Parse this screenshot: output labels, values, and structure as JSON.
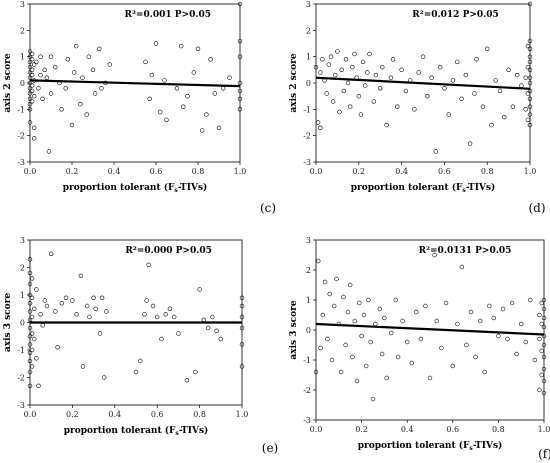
{
  "chart_data": [
    {
      "type": "scatter",
      "panel_label": "(c)",
      "annotation": "R²=0.001 P>0.05",
      "xlabel": "proportion tolerant (F_s-TIVs)",
      "ylabel": "axis 2 score",
      "xlim": [
        0,
        1
      ],
      "ylim": [
        -3,
        3
      ],
      "xticks": [
        "0.0",
        "0.2",
        "0.4",
        "0.6",
        "0.8",
        "1.0"
      ],
      "yticks": [
        "-3",
        "-2",
        "-1",
        "0",
        "1",
        "2",
        "3"
      ],
      "trend": {
        "x": [
          0,
          1
        ],
        "y": [
          0.1,
          -0.12
        ]
      },
      "points": [
        [
          0.0,
          1.2
        ],
        [
          0.0,
          1.0
        ],
        [
          0.0,
          0.8
        ],
        [
          0.0,
          0.6
        ],
        [
          0.0,
          0.4
        ],
        [
          0.0,
          0.2
        ],
        [
          0.0,
          0.0
        ],
        [
          0.0,
          -0.2
        ],
        [
          0.0,
          -0.4
        ],
        [
          0.0,
          -0.6
        ],
        [
          0.0,
          -0.8
        ],
        [
          0.0,
          -1.0
        ],
        [
          0.0,
          -1.5
        ],
        [
          0.01,
          1.1
        ],
        [
          0.01,
          0.9
        ],
        [
          0.01,
          0.5
        ],
        [
          0.01,
          0.3
        ],
        [
          0.01,
          -0.1
        ],
        [
          0.01,
          -0.3
        ],
        [
          0.01,
          -0.7
        ],
        [
          0.02,
          0.7
        ],
        [
          0.02,
          0.1
        ],
        [
          0.02,
          -0.5
        ],
        [
          0.02,
          -1.7
        ],
        [
          0.02,
          -2.1
        ],
        [
          0.03,
          0.8
        ],
        [
          0.04,
          -0.2
        ],
        [
          0.05,
          1.0
        ],
        [
          0.05,
          0.3
        ],
        [
          0.06,
          -0.6
        ],
        [
          0.07,
          0.5
        ],
        [
          0.08,
          0.2
        ],
        [
          0.09,
          -2.6
        ],
        [
          0.1,
          1.0
        ],
        [
          0.1,
          -0.4
        ],
        [
          0.12,
          0.6
        ],
        [
          0.14,
          0.0
        ],
        [
          0.15,
          -1.0
        ],
        [
          0.17,
          -0.2
        ],
        [
          0.18,
          0.9
        ],
        [
          0.2,
          -1.6
        ],
        [
          0.21,
          0.4
        ],
        [
          0.22,
          1.4
        ],
        [
          0.24,
          -0.8
        ],
        [
          0.25,
          0.2
        ],
        [
          0.27,
          -1.2
        ],
        [
          0.28,
          1.0
        ],
        [
          0.3,
          0.5
        ],
        [
          0.31,
          -0.4
        ],
        [
          0.33,
          1.3
        ],
        [
          0.34,
          -0.2
        ],
        [
          0.36,
          0.0
        ],
        [
          0.38,
          0.7
        ],
        [
          0.55,
          0.8
        ],
        [
          0.57,
          -0.6
        ],
        [
          0.58,
          0.3
        ],
        [
          0.6,
          1.5
        ],
        [
          0.62,
          -1.1
        ],
        [
          0.64,
          0.1
        ],
        [
          0.65,
          -1.4
        ],
        [
          0.7,
          -0.2
        ],
        [
          0.72,
          1.4
        ],
        [
          0.73,
          -0.9
        ],
        [
          0.75,
          -0.5
        ],
        [
          0.78,
          0.4
        ],
        [
          0.8,
          1.3
        ],
        [
          0.82,
          -1.8
        ],
        [
          0.84,
          -1.2
        ],
        [
          0.86,
          0.9
        ],
        [
          0.88,
          -0.4
        ],
        [
          0.9,
          -1.7
        ],
        [
          0.92,
          -0.2
        ],
        [
          0.95,
          0.2
        ],
        [
          1.0,
          3.0
        ],
        [
          1.0,
          1.6
        ],
        [
          1.0,
          1.0
        ],
        [
          1.0,
          0.0
        ],
        [
          1.0,
          -0.3
        ],
        [
          1.0,
          -0.6
        ],
        [
          1.0,
          -1.0
        ]
      ]
    },
    {
      "type": "scatter",
      "panel_label": "(d)",
      "annotation": "R²=0.012 P>0.05",
      "xlabel": "proportion tolerant (F_s-TIVs)",
      "ylabel": "axis 2 score",
      "xlim": [
        0,
        1
      ],
      "ylim": [
        -3,
        3
      ],
      "xticks": [
        "0.0",
        "0.2",
        "0.4",
        "0.6",
        "0.8",
        "1.0"
      ],
      "yticks": [
        "-3",
        "-2",
        "-1",
        "0",
        "1",
        "2",
        "3"
      ],
      "trend": {
        "x": [
          0,
          1
        ],
        "y": [
          0.2,
          -0.22
        ]
      },
      "points": [
        [
          0.0,
          0.6
        ],
        [
          0.01,
          -1.5
        ],
        [
          0.02,
          -1.7
        ],
        [
          0.02,
          0.4
        ],
        [
          0.03,
          0.9
        ],
        [
          0.04,
          0.1
        ],
        [
          0.05,
          -0.4
        ],
        [
          0.06,
          0.7
        ],
        [
          0.07,
          1.0
        ],
        [
          0.08,
          -0.7
        ],
        [
          0.09,
          0.3
        ],
        [
          0.1,
          1.2
        ],
        [
          0.11,
          -1.1
        ],
        [
          0.12,
          0.5
        ],
        [
          0.13,
          -0.3
        ],
        [
          0.14,
          0.9
        ],
        [
          0.15,
          0.0
        ],
        [
          0.16,
          -0.9
        ],
        [
          0.17,
          0.6
        ],
        [
          0.18,
          1.1
        ],
        [
          0.19,
          0.2
        ],
        [
          0.2,
          -0.5
        ],
        [
          0.21,
          -1.2
        ],
        [
          0.22,
          0.8
        ],
        [
          0.23,
          -0.1
        ],
        [
          0.24,
          0.4
        ],
        [
          0.25,
          1.1
        ],
        [
          0.27,
          -0.7
        ],
        [
          0.28,
          0.3
        ],
        [
          0.3,
          -0.2
        ],
        [
          0.31,
          0.6
        ],
        [
          0.33,
          -1.6
        ],
        [
          0.35,
          0.2
        ],
        [
          0.36,
          0.9
        ],
        [
          0.38,
          -0.9
        ],
        [
          0.4,
          0.5
        ],
        [
          0.42,
          -0.3
        ],
        [
          0.44,
          0.1
        ],
        [
          0.46,
          -1.0
        ],
        [
          0.48,
          0.4
        ],
        [
          0.5,
          1.0
        ],
        [
          0.52,
          -0.5
        ],
        [
          0.54,
          0.2
        ],
        [
          0.56,
          -2.6
        ],
        [
          0.58,
          0.6
        ],
        [
          0.6,
          -0.2
        ],
        [
          0.62,
          -1.2
        ],
        [
          0.64,
          0.1
        ],
        [
          0.66,
          0.8
        ],
        [
          0.68,
          -0.6
        ],
        [
          0.7,
          0.3
        ],
        [
          0.72,
          -2.3
        ],
        [
          0.74,
          -0.4
        ],
        [
          0.75,
          0.9
        ],
        [
          0.78,
          -0.9
        ],
        [
          0.8,
          1.3
        ],
        [
          0.82,
          -1.6
        ],
        [
          0.84,
          0.1
        ],
        [
          0.86,
          -0.3
        ],
        [
          0.88,
          -1.3
        ],
        [
          0.9,
          0.5
        ],
        [
          0.92,
          -0.9
        ],
        [
          0.94,
          0.3
        ],
        [
          0.96,
          -0.1
        ],
        [
          1.0,
          3.0
        ],
        [
          1.0,
          1.6
        ],
        [
          1.0,
          1.3
        ],
        [
          1.0,
          1.0
        ],
        [
          1.0,
          0.8
        ],
        [
          1.0,
          0.5
        ],
        [
          1.0,
          0.2
        ],
        [
          1.0,
          0.0
        ],
        [
          1.0,
          -0.3
        ],
        [
          1.0,
          -0.6
        ],
        [
          1.0,
          -0.9
        ],
        [
          1.0,
          -1.2
        ],
        [
          1.0,
          -1.6
        ],
        [
          0.99,
          1.4
        ],
        [
          0.99,
          0.6
        ],
        [
          0.99,
          -0.4
        ],
        [
          0.99,
          -1.4
        ],
        [
          0.98,
          0.2
        ],
        [
          0.98,
          -1.0
        ]
      ]
    },
    {
      "type": "scatter",
      "panel_label": "(e)",
      "annotation": "R²=0.000 P>0.05",
      "xlabel": "proportion tolerant (F_s-TIVs)",
      "ylabel": "axis 3 score",
      "xlim": [
        0,
        1
      ],
      "ylim": [
        -3,
        3
      ],
      "xticks": [
        "0.0",
        "0.2",
        "0.4",
        "0.6",
        "0.8",
        "1.0"
      ],
      "yticks": [
        "-3",
        "-2",
        "-1",
        "0",
        "1",
        "2",
        "3"
      ],
      "trend": {
        "x": [
          0,
          1
        ],
        "y": [
          0.0,
          0.0
        ]
      },
      "points": [
        [
          0.0,
          2.3
        ],
        [
          0.0,
          1.8
        ],
        [
          0.0,
          1.4
        ],
        [
          0.0,
          1.0
        ],
        [
          0.0,
          0.7
        ],
        [
          0.0,
          0.4
        ],
        [
          0.0,
          0.1
        ],
        [
          0.0,
          -0.2
        ],
        [
          0.0,
          -0.5
        ],
        [
          0.0,
          -0.8
        ],
        [
          0.0,
          -1.1
        ],
        [
          0.0,
          -1.4
        ],
        [
          0.0,
          -1.8
        ],
        [
          0.0,
          -2.3
        ],
        [
          0.01,
          1.6
        ],
        [
          0.01,
          0.9
        ],
        [
          0.01,
          0.2
        ],
        [
          0.01,
          -0.4
        ],
        [
          0.01,
          -1.0
        ],
        [
          0.01,
          -1.6
        ],
        [
          0.02,
          0.5
        ],
        [
          0.02,
          -0.6
        ],
        [
          0.03,
          1.2
        ],
        [
          0.03,
          -1.3
        ],
        [
          0.04,
          -2.3
        ],
        [
          0.05,
          0.3
        ],
        [
          0.06,
          -0.1
        ],
        [
          0.07,
          0.8
        ],
        [
          0.08,
          0.6
        ],
        [
          0.1,
          2.5
        ],
        [
          0.12,
          0.4
        ],
        [
          0.13,
          -0.9
        ],
        [
          0.15,
          0.7
        ],
        [
          0.17,
          0.9
        ],
        [
          0.2,
          0.8
        ],
        [
          0.22,
          0.3
        ],
        [
          0.24,
          1.7
        ],
        [
          0.25,
          -1.6
        ],
        [
          0.27,
          0.6
        ],
        [
          0.28,
          0.2
        ],
        [
          0.3,
          0.9
        ],
        [
          0.31,
          0.5
        ],
        [
          0.33,
          -0.4
        ],
        [
          0.34,
          0.9
        ],
        [
          0.35,
          -2.0
        ],
        [
          0.36,
          0.4
        ],
        [
          0.5,
          -1.8
        ],
        [
          0.52,
          -1.4
        ],
        [
          0.54,
          0.3
        ],
        [
          0.55,
          0.8
        ],
        [
          0.56,
          2.1
        ],
        [
          0.58,
          0.6
        ],
        [
          0.6,
          0.2
        ],
        [
          0.62,
          -0.6
        ],
        [
          0.64,
          0.3
        ],
        [
          0.66,
          0.5
        ],
        [
          0.68,
          0.2
        ],
        [
          0.7,
          -0.4
        ],
        [
          0.74,
          -2.1
        ],
        [
          0.78,
          -1.8
        ],
        [
          0.8,
          1.2
        ],
        [
          0.82,
          0.1
        ],
        [
          0.84,
          -0.2
        ],
        [
          0.86,
          0.2
        ],
        [
          0.88,
          -0.3
        ],
        [
          0.9,
          -0.6
        ],
        [
          1.0,
          0.9
        ],
        [
          1.0,
          0.6
        ],
        [
          1.0,
          0.2
        ],
        [
          1.0,
          -0.2
        ],
        [
          1.0,
          -0.8
        ],
        [
          1.0,
          -1.6
        ]
      ]
    },
    {
      "type": "scatter",
      "panel_label": "(f)",
      "annotation": "R²=0.0131 P>0.05",
      "xlabel": "proportion tolerant (F_s-TIVs)",
      "ylabel": "axis 3 score",
      "xlim": [
        0,
        1
      ],
      "ylim": [
        -3,
        3
      ],
      "xticks": [
        "0.0",
        "0.2",
        "0.4",
        "0.6",
        "0.8",
        "1.0"
      ],
      "yticks": [
        "-3",
        "-2",
        "-1",
        "0",
        "1",
        "2",
        "3"
      ],
      "trend": {
        "x": [
          0,
          1
        ],
        "y": [
          0.2,
          -0.15
        ]
      },
      "points": [
        [
          0.0,
          -1.4
        ],
        [
          0.01,
          2.3
        ],
        [
          0.02,
          -0.6
        ],
        [
          0.03,
          0.5
        ],
        [
          0.04,
          1.6
        ],
        [
          0.05,
          -0.3
        ],
        [
          0.06,
          1.2
        ],
        [
          0.07,
          -1.0
        ],
        [
          0.08,
          0.8
        ],
        [
          0.09,
          1.7
        ],
        [
          0.1,
          0.2
        ],
        [
          0.11,
          -1.4
        ],
        [
          0.12,
          1.1
        ],
        [
          0.13,
          -0.5
        ],
        [
          0.14,
          0.6
        ],
        [
          0.15,
          1.5
        ],
        [
          0.16,
          -0.9
        ],
        [
          0.17,
          0.3
        ],
        [
          0.18,
          -1.7
        ],
        [
          0.19,
          0.9
        ],
        [
          0.2,
          -0.2
        ],
        [
          0.21,
          0.5
        ],
        [
          0.22,
          -1.2
        ],
        [
          0.23,
          1.0
        ],
        [
          0.24,
          -0.4
        ],
        [
          0.25,
          -2.3
        ],
        [
          0.26,
          0.2
        ],
        [
          0.28,
          0.7
        ],
        [
          0.29,
          -0.8
        ],
        [
          0.3,
          0.4
        ],
        [
          0.31,
          -1.6
        ],
        [
          0.33,
          -0.1
        ],
        [
          0.35,
          1.0
        ],
        [
          0.36,
          -0.9
        ],
        [
          0.38,
          0.3
        ],
        [
          0.4,
          -0.4
        ],
        [
          0.42,
          -1.1
        ],
        [
          0.44,
          0.6
        ],
        [
          0.46,
          -0.3
        ],
        [
          0.48,
          0.8
        ],
        [
          0.5,
          -1.6
        ],
        [
          0.52,
          2.5
        ],
        [
          0.53,
          0.3
        ],
        [
          0.55,
          -0.6
        ],
        [
          0.57,
          0.9
        ],
        [
          0.6,
          -1.2
        ],
        [
          0.62,
          0.2
        ],
        [
          0.64,
          2.1
        ],
        [
          0.66,
          -0.5
        ],
        [
          0.68,
          0.6
        ],
        [
          0.7,
          -0.9
        ],
        [
          0.72,
          0.3
        ],
        [
          0.74,
          -1.4
        ],
        [
          0.76,
          0.8
        ],
        [
          0.78,
          0.4
        ],
        [
          0.8,
          -0.2
        ],
        [
          0.82,
          0.7
        ],
        [
          0.84,
          -0.3
        ],
        [
          0.86,
          0.9
        ],
        [
          0.88,
          -0.8
        ],
        [
          0.9,
          0.2
        ],
        [
          0.92,
          -0.4
        ],
        [
          0.94,
          1.0
        ],
        [
          0.96,
          -1.0
        ],
        [
          1.0,
          1.0
        ],
        [
          1.0,
          0.7
        ],
        [
          1.0,
          0.4
        ],
        [
          1.0,
          0.1
        ],
        [
          1.0,
          -0.2
        ],
        [
          1.0,
          -0.5
        ],
        [
          1.0,
          -0.9
        ],
        [
          1.0,
          -1.3
        ],
        [
          1.0,
          -1.7
        ],
        [
          1.0,
          -2.1
        ],
        [
          0.99,
          0.9
        ],
        [
          0.99,
          0.2
        ],
        [
          0.99,
          -0.7
        ],
        [
          0.99,
          -1.5
        ],
        [
          0.98,
          0.5
        ],
        [
          0.98,
          -0.3
        ],
        [
          0.98,
          -2.0
        ]
      ]
    }
  ]
}
